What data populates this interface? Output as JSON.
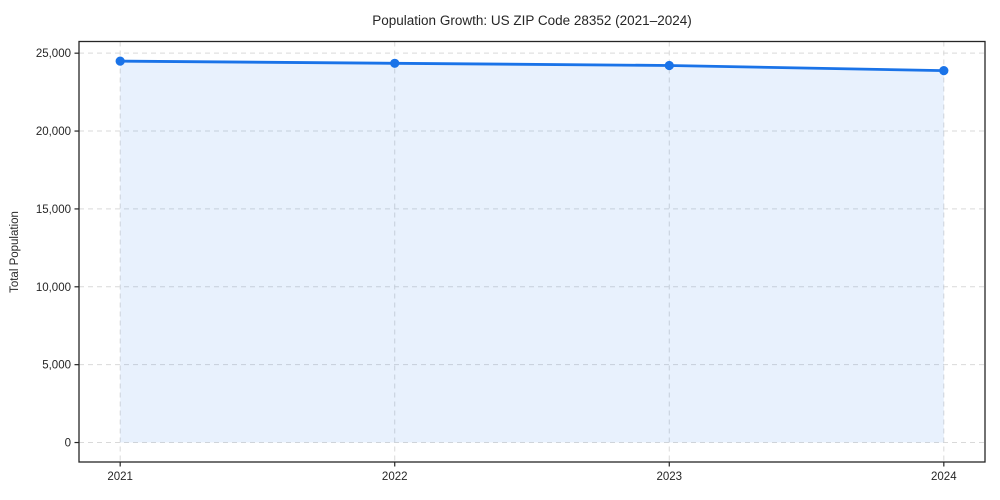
{
  "chart_data": {
    "type": "area",
    "title": "Population Growth: US ZIP Code 28352 (2021–2024)",
    "xlabel": "",
    "ylabel": "Total Population",
    "x": [
      2021,
      2022,
      2023,
      2024
    ],
    "categories": [
      "2021",
      "2022",
      "2023",
      "2024"
    ],
    "series": [
      {
        "name": "Total Population",
        "values": [
          24490,
          24350,
          24210,
          23880
        ]
      }
    ],
    "yticks": [
      0,
      5000,
      10000,
      15000,
      20000,
      25000
    ],
    "ytick_labels": [
      "0",
      "5,000",
      "10,000",
      "15,000",
      "20,000",
      "25,000"
    ],
    "xlim": [
      2020.85,
      2024.15
    ],
    "ylim": [
      -1250,
      25750
    ],
    "grid": true,
    "grid_style": "dashed",
    "legend": false,
    "marker": "circle",
    "colors": {
      "line": "#1a73e8",
      "fill": "#1a73e8",
      "fill_opacity": 0.1,
      "grid": "#d9d9d9",
      "spine": "#262626",
      "text": "#262626"
    }
  }
}
